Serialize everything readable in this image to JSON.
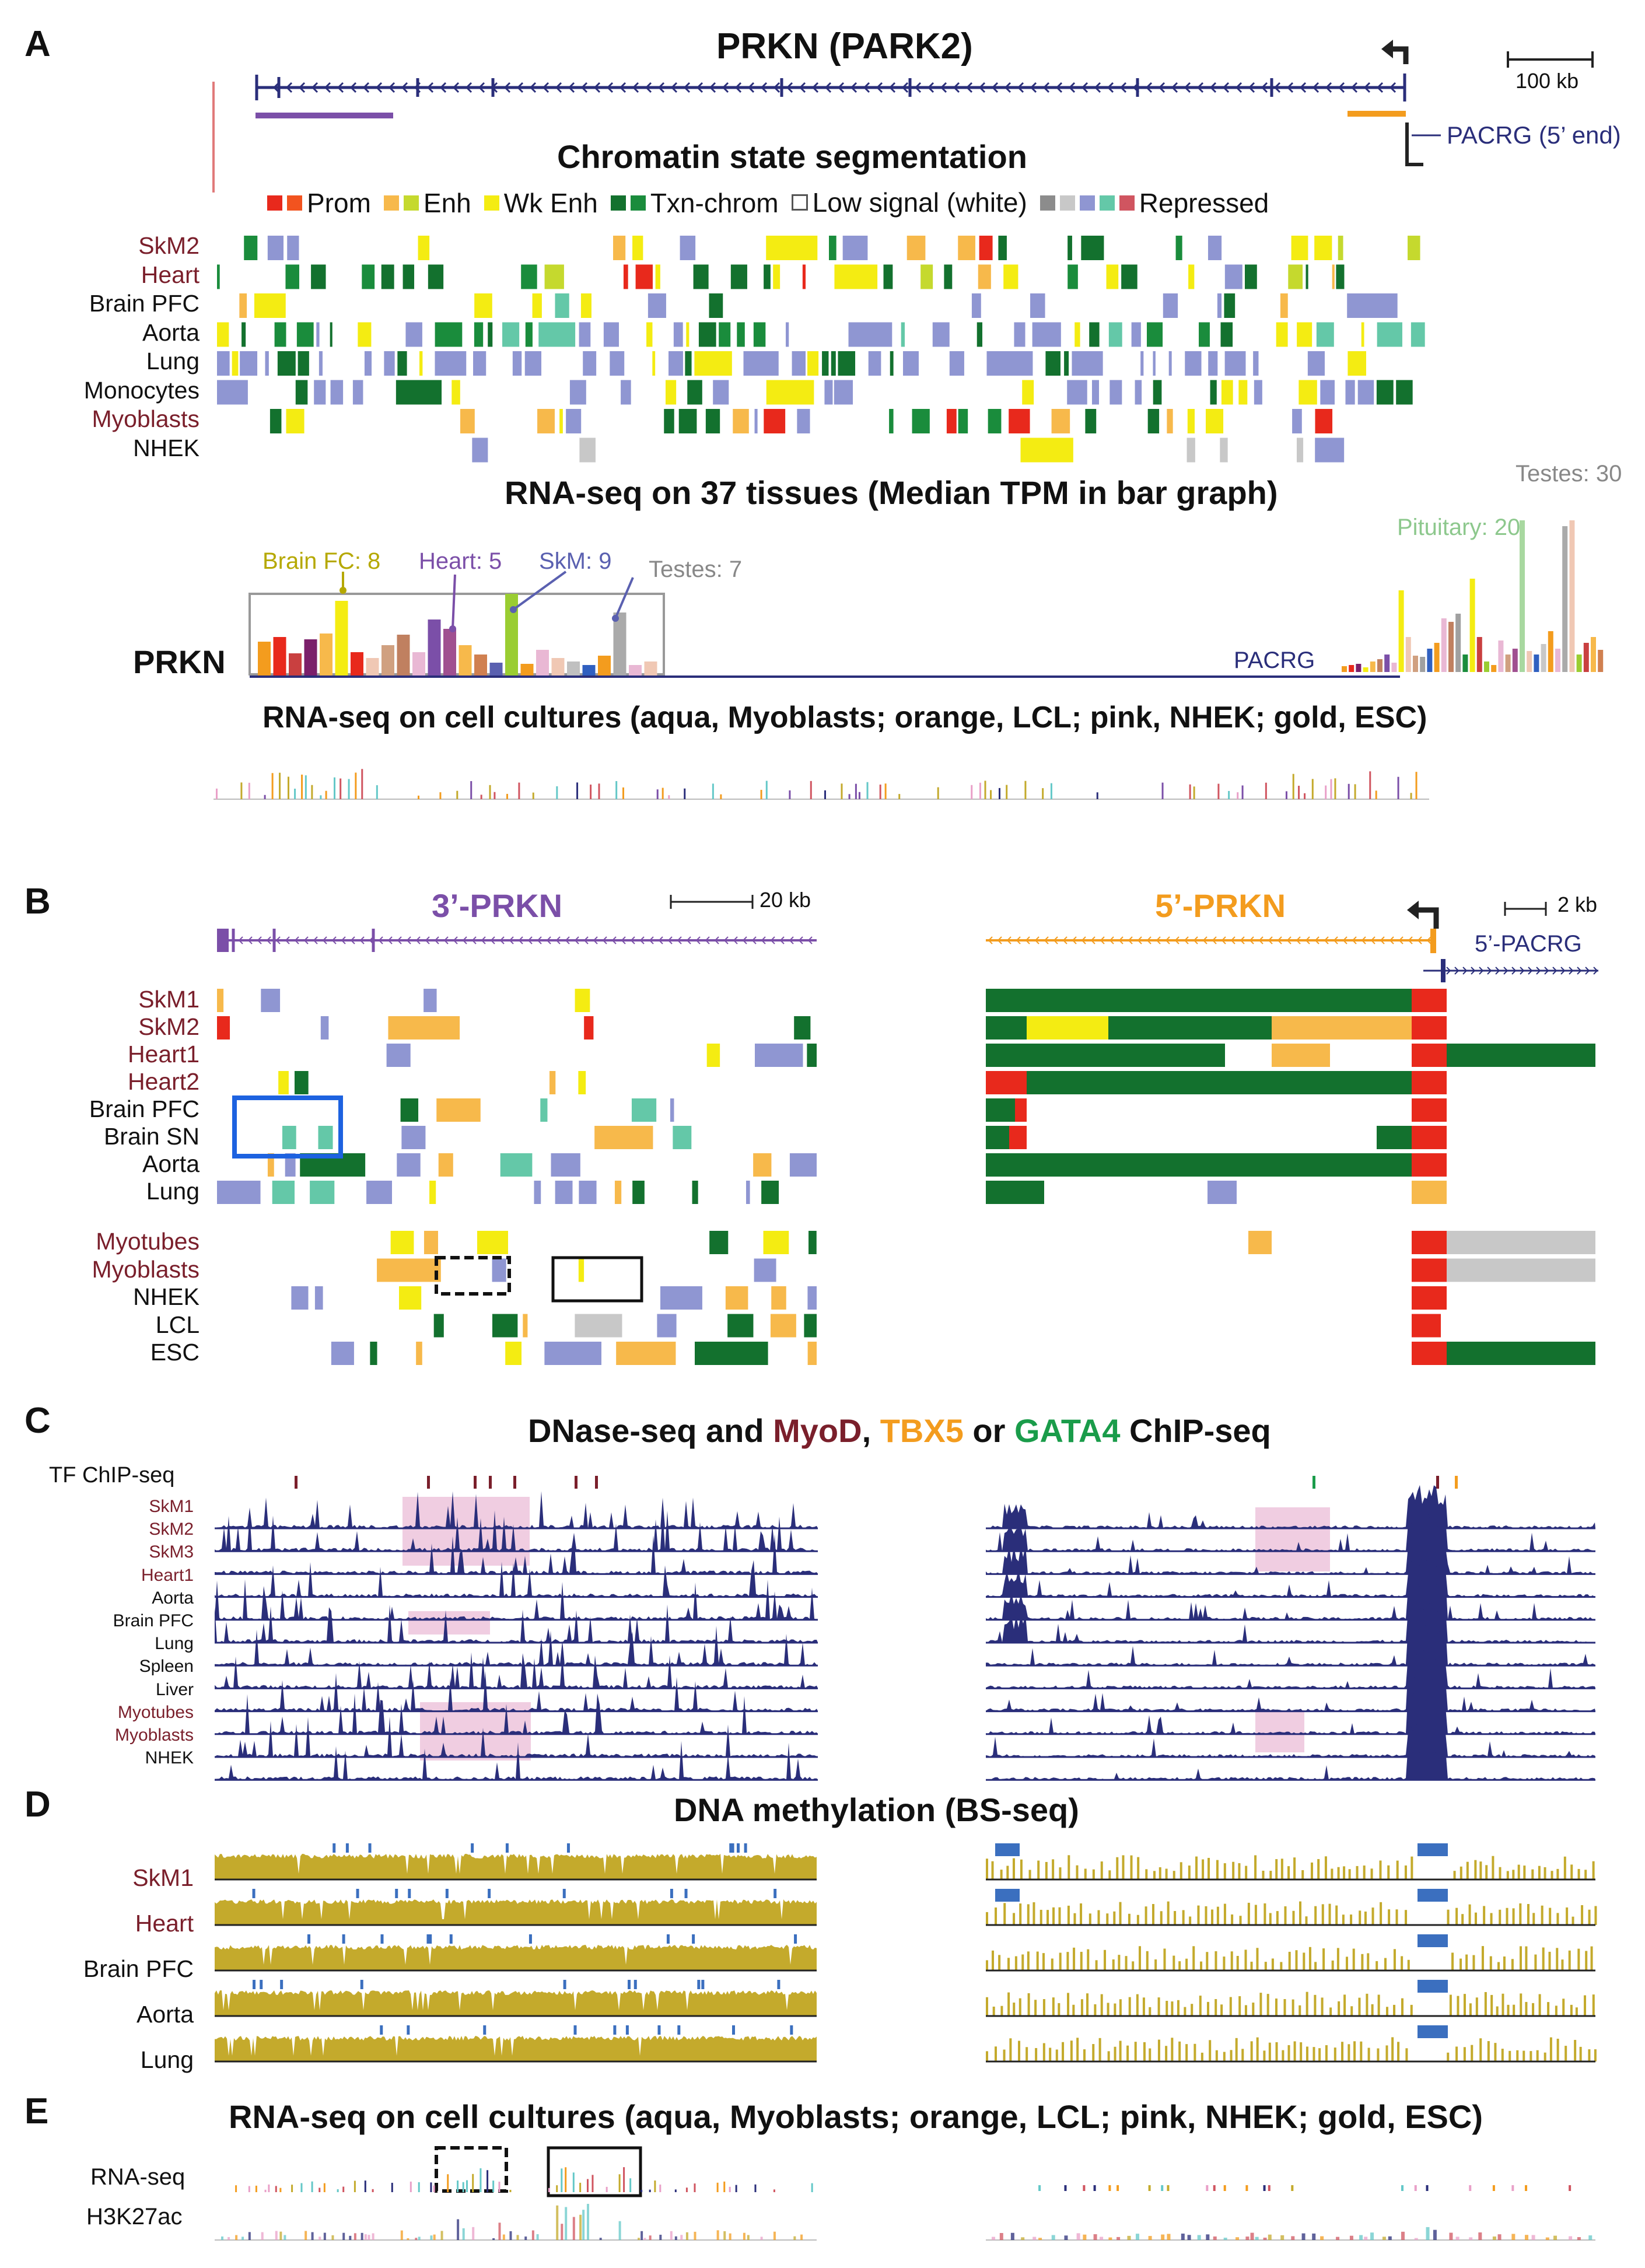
{
  "panels": {
    "A": {
      "letter": "A",
      "gene_title": "PRKN (PARK2)",
      "scale_label": "100 kb",
      "pacrg_label": "PACRG (5’ end)",
      "chromatin_title": "Chromatin state segmentation",
      "legend": [
        {
          "label": "Prom",
          "colors": [
            "#e8291c",
            "#f2531f"
          ]
        },
        {
          "label": "Enh",
          "colors": [
            "#f7b94b",
            "#c5d92e"
          ]
        },
        {
          "label": "Wk Enh",
          "colors": [
            "#f4ec12"
          ]
        },
        {
          "label": "Txn-chrom",
          "colors": [
            "#13712e",
            "#1a8c3c"
          ]
        },
        {
          "label": "Low signal (white)",
          "colors": [
            "outline"
          ]
        },
        {
          "label": "Repressed",
          "colors": [
            "#8c8c8c",
            "#c8c8c8",
            "#8f96d2",
            "#64c8a8",
            "#d05560"
          ]
        }
      ],
      "tracks": [
        {
          "label": "SkM2",
          "muscle": true
        },
        {
          "label": "Heart",
          "muscle": true
        },
        {
          "label": "Brain PFC",
          "muscle": false
        },
        {
          "label": "Aorta",
          "muscle": false
        },
        {
          "label": "Lung",
          "muscle": false
        },
        {
          "label": "Monocytes",
          "muscle": false
        },
        {
          "label": "Myoblasts",
          "muscle": true
        },
        {
          "label": "NHEK",
          "muscle": false
        }
      ],
      "rnaseq_title": "RNA-seq on 37 tissues (Median TPM in bar graph)",
      "testes_label": "Testes: 30",
      "pituitary_label": "Pituitary: 20",
      "brainfc_label": "Brain FC: 8",
      "heart_label": "Heart: 5",
      "skm_label": "SkM: 9",
      "testes7_label": "Testes: 7",
      "prkn_label": "PRKN",
      "pacrg_bar_label": "PACRG",
      "cell_title": "RNA-seq on cell cultures (aqua, Myoblasts; orange, LCL; pink, NHEK; gold, ESC)"
    },
    "B": {
      "letter": "B",
      "left_title": "3’-PRKN",
      "right_title": "5’-PRKN",
      "left_scale": "20 kb",
      "right_scale": "2 kb",
      "pacrg_label": "5’-PACRG",
      "tracks": [
        {
          "label": "SkM1",
          "muscle": true
        },
        {
          "label": "SkM2",
          "muscle": true
        },
        {
          "label": "Heart1",
          "muscle": true
        },
        {
          "label": "Heart2",
          "muscle": true
        },
        {
          "label": "Brain PFC",
          "muscle": false
        },
        {
          "label": "Brain SN",
          "muscle": false
        },
        {
          "label": "Aorta",
          "muscle": false
        },
        {
          "label": "Lung",
          "muscle": false
        }
      ],
      "tracks2": [
        {
          "label": "Myotubes",
          "muscle": true
        },
        {
          "label": "Myoblasts",
          "muscle": true
        },
        {
          "label": "NHEK",
          "muscle": false
        },
        {
          "label": "LCL",
          "muscle": false
        },
        {
          "label": "ESC",
          "muscle": false
        }
      ]
    },
    "C": {
      "letter": "C",
      "title_parts": [
        "DNase-seq and ",
        "MyoD",
        ", ",
        "TBX5",
        " or ",
        "GATA4",
        " ChIP-seq"
      ],
      "title_colors": {
        "myod": "#7a1f2b",
        "tbx5": "#f39c1e",
        "gata4": "#1a9c4a"
      },
      "tf_label": "TF ChIP-seq",
      "tracks": [
        {
          "label": "SkM1",
          "muscle": true
        },
        {
          "label": "SkM2",
          "muscle": true
        },
        {
          "label": "SkM3",
          "muscle": true
        },
        {
          "label": "Heart1",
          "muscle": true
        },
        {
          "label": "Aorta",
          "muscle": false
        },
        {
          "label": "Brain PFC",
          "muscle": false
        },
        {
          "label": "Lung",
          "muscle": false
        },
        {
          "label": "Spleen",
          "muscle": false
        },
        {
          "label": "Liver",
          "muscle": false
        },
        {
          "label": "Myotubes",
          "muscle": true
        },
        {
          "label": "Myoblasts",
          "muscle": true
        },
        {
          "label": "NHEK",
          "muscle": false
        }
      ]
    },
    "D": {
      "letter": "D",
      "title": "DNA methylation (BS-seq)",
      "tracks": [
        {
          "label": "SkM1",
          "muscle": true
        },
        {
          "label": "Heart",
          "muscle": true
        },
        {
          "label": "Brain PFC",
          "muscle": false
        },
        {
          "label": "Aorta",
          "muscle": false
        },
        {
          "label": "Lung",
          "muscle": false
        }
      ]
    },
    "E": {
      "letter": "E",
      "title": "RNA-seq on cell cultures (aqua, Myoblasts; orange, LCL; pink, NHEK; gold, ESC)",
      "rnaseq_label": "RNA-seq",
      "h3k27ac_label": "H3K27ac"
    }
  },
  "colors": {
    "prom": "#e8291c",
    "prom2": "#f2531f",
    "enh": "#f7b94b",
    "enh2": "#c5d92e",
    "wkenh": "#f4ec12",
    "txn": "#13712e",
    "txn2": "#1a8c3c",
    "rep1": "#8c8c8c",
    "rep2": "#c8c8c8",
    "rep3": "#8f96d2",
    "rep4": "#64c8a8",
    "rep5": "#d05560",
    "navy": "#2a2e7a",
    "purple": "#7b4fa8",
    "orange": "#f39c1e",
    "methyl": "#c4aa2c",
    "methylblue": "#3b6fbf",
    "pink": "#e9b8d4",
    "axis": "#e07a7a"
  }
}
